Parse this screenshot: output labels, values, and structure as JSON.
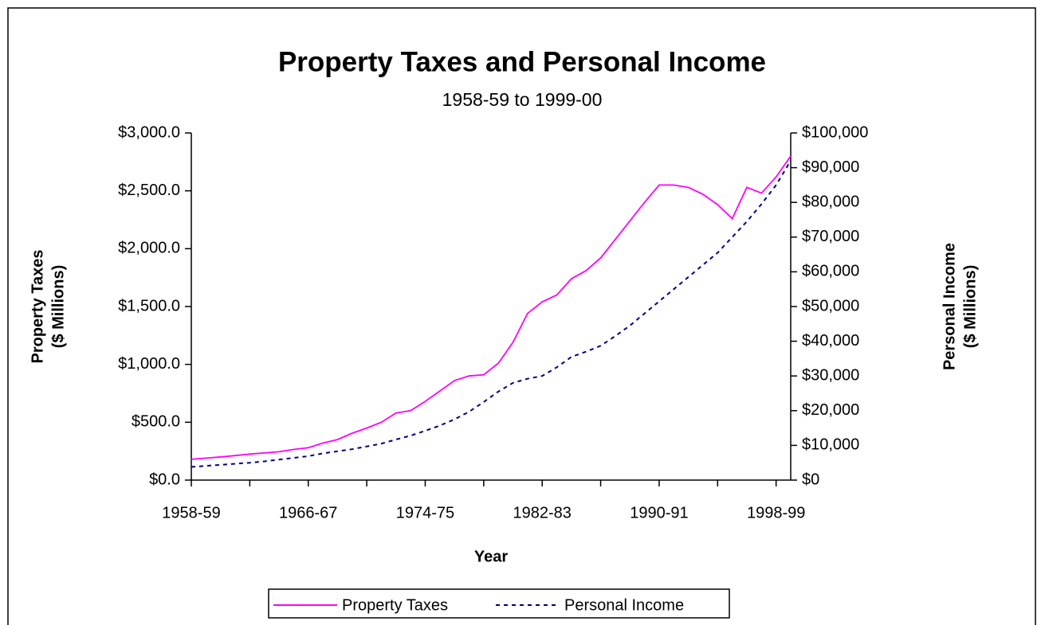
{
  "chart_data": {
    "type": "line",
    "title": "Property Taxes and Personal Income",
    "subtitle": "1958-59 to 1999-00",
    "x_label": "Year",
    "y_label": [
      "Property Taxes",
      "($ Millions)"
    ],
    "y2_label": [
      "Personal Income",
      "($ Millions)"
    ],
    "categories": [
      "1958-59",
      null,
      null,
      null,
      null,
      null,
      null,
      null,
      "1966-67",
      null,
      null,
      null,
      null,
      null,
      null,
      null,
      "1974-75",
      null,
      null,
      null,
      null,
      null,
      null,
      null,
      "1982-83",
      null,
      null,
      null,
      null,
      null,
      null,
      null,
      "1990-91",
      null,
      null,
      null,
      null,
      null,
      null,
      null,
      "1998-99",
      null
    ],
    "series": [
      {
        "name": "Property Taxes",
        "color": "#ff00ff",
        "dash": "solid",
        "axis": "y",
        "values": [
          180,
          190,
          200,
          212,
          225,
          235,
          245,
          265,
          280,
          320,
          350,
          405,
          450,
          500,
          580,
          600,
          680,
          770,
          860,
          900,
          910,
          1010,
          1190,
          1440,
          1540,
          1600,
          1740,
          1810,
          1920,
          2080,
          2240,
          2400,
          2550,
          2550,
          2530,
          2470,
          2380,
          2260,
          2530,
          2480,
          2620,
          2800
        ]
      },
      {
        "name": "Personal Income",
        "color": "#000080",
        "dash": "dashed",
        "axis": "y2",
        "values": [
          3800,
          4100,
          4400,
          4700,
          5000,
          5400,
          5900,
          6400,
          6900,
          7700,
          8300,
          8900,
          9700,
          10500,
          11700,
          12800,
          14200,
          15700,
          17500,
          19700,
          22500,
          25500,
          28000,
          29200,
          30000,
          32500,
          35500,
          37000,
          38700,
          41500,
          44500,
          48000,
          51500,
          55000,
          58500,
          62000,
          65500,
          70000,
          74500,
          79500,
          85000,
          92000
        ]
      }
    ],
    "ylim": [
      0,
      3000
    ],
    "yticks": [
      {
        "value": 0,
        "label": "$0.0"
      },
      {
        "value": 500,
        "label": "$500.0"
      },
      {
        "value": 1000,
        "label": "$1,000.0"
      },
      {
        "value": 1500,
        "label": "$1,500.0"
      },
      {
        "value": 2000,
        "label": "$2,000.0"
      },
      {
        "value": 2500,
        "label": "$2,500.0"
      },
      {
        "value": 3000,
        "label": "$3,000.0"
      }
    ],
    "y2lim": [
      0,
      100000
    ],
    "y2ticks": [
      {
        "value": 0,
        "label": "$0"
      },
      {
        "value": 10000,
        "label": "$10,000"
      },
      {
        "value": 20000,
        "label": "$20,000"
      },
      {
        "value": 30000,
        "label": "$30,000"
      },
      {
        "value": 40000,
        "label": "$40,000"
      },
      {
        "value": 50000,
        "label": "$50,000"
      },
      {
        "value": 60000,
        "label": "$60,000"
      },
      {
        "value": 70000,
        "label": "$70,000"
      },
      {
        "value": 80000,
        "label": "$80,000"
      },
      {
        "value": 90000,
        "label": "$90,000"
      },
      {
        "value": 100000,
        "label": "$100,000"
      }
    ],
    "grid": false,
    "legend": "bottom"
  }
}
